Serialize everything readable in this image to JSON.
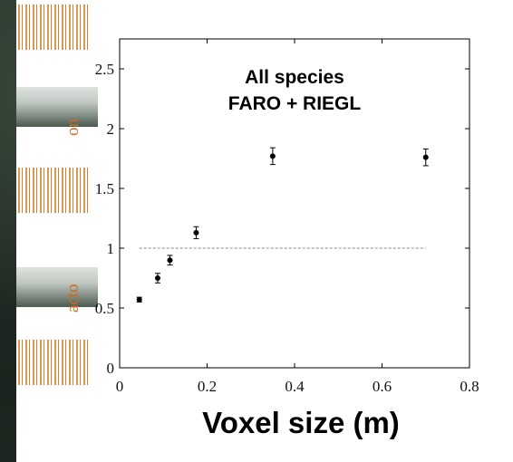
{
  "chart_data": {
    "type": "scatter",
    "title_lines": [
      "All species",
      "FARO + RIEGL"
    ],
    "xlabel": "Voxel size (m)",
    "xlim": [
      0,
      0.8
    ],
    "ylim": [
      0,
      2.75
    ],
    "xticks": [
      0,
      0.2,
      0.4,
      0.6,
      0.8
    ],
    "xtick_labels": [
      "0",
      "0.2",
      "0.4",
      "0.6",
      "0.8"
    ],
    "yticks": [
      0,
      0.5,
      1,
      1.5,
      2,
      2.5
    ],
    "ytick_labels": [
      "0",
      "0.5",
      "1",
      "1.5",
      "2",
      "2.5"
    ],
    "points": [
      {
        "x": 0.045,
        "y": 0.57,
        "err": 0.02
      },
      {
        "x": 0.087,
        "y": 0.75,
        "err": 0.04
      },
      {
        "x": 0.115,
        "y": 0.9,
        "err": 0.04
      },
      {
        "x": 0.175,
        "y": 1.13,
        "err": 0.05
      },
      {
        "x": 0.35,
        "y": 1.77,
        "err": 0.07
      },
      {
        "x": 0.7,
        "y": 1.76,
        "err": 0.07
      }
    ],
    "reference_line": {
      "y": 1,
      "x_range": [
        0.045,
        0.7
      ],
      "style": "dashed"
    },
    "grid": false,
    "colors": {
      "points": "#000000",
      "reference_line": "#888888",
      "fragment_text": "#d2691e"
    }
  },
  "fragments": {
    "ylabel_top": "on",
    "ylabel_bottom": "acto"
  }
}
